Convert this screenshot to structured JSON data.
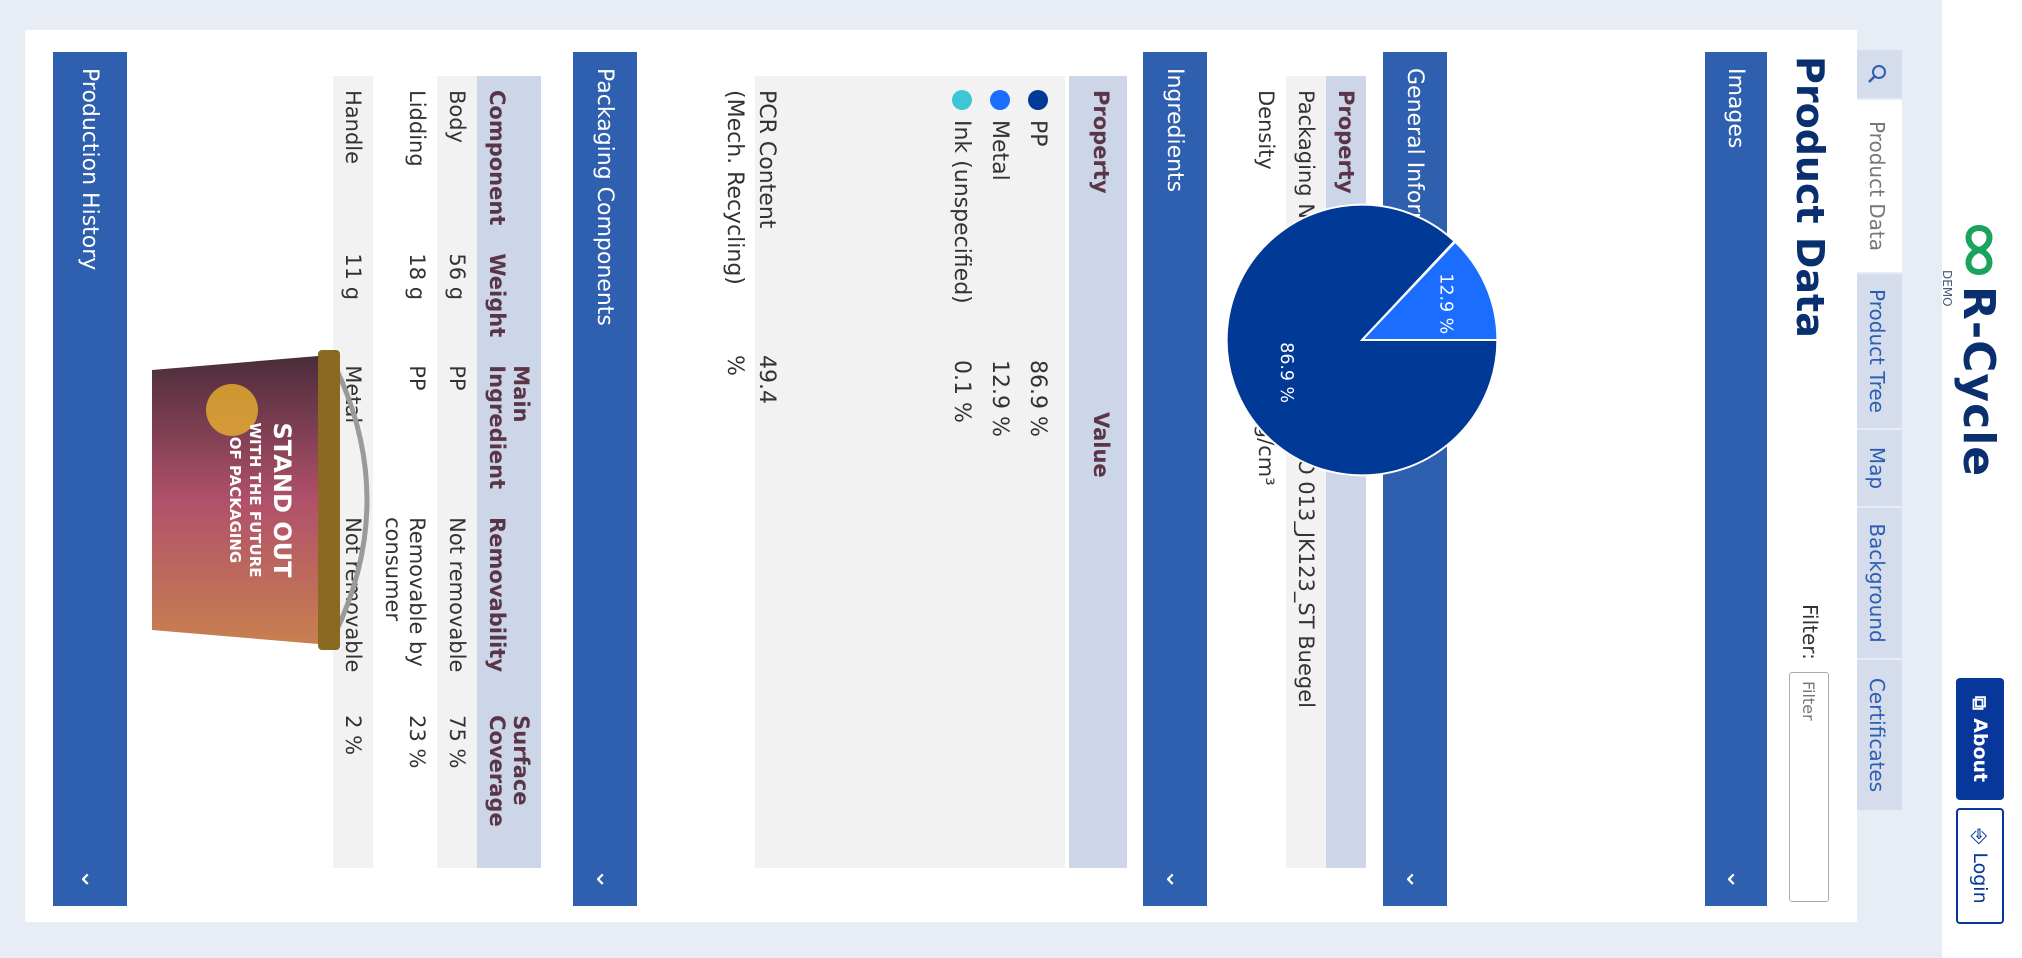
{
  "brand": {
    "name": "R-Cycle",
    "tag": "DEMO"
  },
  "header": {
    "about_label": "About",
    "login_label": "Login"
  },
  "tabs": [
    {
      "label": "Product Data"
    },
    {
      "label": "Product Tree"
    },
    {
      "label": "Map"
    },
    {
      "label": "Background"
    },
    {
      "label": "Certificates"
    }
  ],
  "page": {
    "title": "Product Data",
    "filter_label": "Filter:",
    "filter_placeholder": "Filter"
  },
  "sections": {
    "images": "Images",
    "general": "General Information",
    "ingredients": "Ingredients",
    "packaging": "Packaging Components",
    "history": "Production History"
  },
  "general_info": {
    "headers": [
      "Property",
      "Value"
    ],
    "rows": [
      {
        "property": "Packaging Name",
        "value": "Eimer JETO 013_JK123_ST Buegel"
      },
      {
        "property": "Density",
        "value": "1.811 g/cm³"
      }
    ]
  },
  "ingredients": {
    "headers": [
      "Property",
      "Value"
    ],
    "items": [
      {
        "name": "PP",
        "value": "86.9 %",
        "color": "#003a96"
      },
      {
        "name": "Metal",
        "value": "12.9 %",
        "color": "#1a6dff"
      },
      {
        "name": "Ink (unspecified)",
        "value": "0.1 %",
        "color": "#3ec6d6"
      }
    ],
    "pcr_label_1": "PCR Content",
    "pcr_label_2": "(Mech. Recycling)",
    "pcr_value": "49.4 %"
  },
  "chart_data": {
    "type": "pie",
    "categories": [
      "PP",
      "Metal",
      "Ink (unspecified)"
    ],
    "values": [
      86.9,
      12.9,
      0.1
    ],
    "labels": [
      "86.9 %",
      "12.9 %",
      ""
    ]
  },
  "packaging": {
    "headers": [
      "Component",
      "Weight",
      "Main Ingredient",
      "Removability",
      "Surface Coverage"
    ],
    "rows": [
      {
        "component": "Body",
        "weight": "56 g",
        "ingredient": "PP",
        "removability": "Not removable",
        "coverage": "75 %"
      },
      {
        "component": "Lidding",
        "weight": "18 g",
        "ingredient": "PP",
        "removability": "Removable by consumer",
        "coverage": "23 %"
      },
      {
        "component": "Handle",
        "weight": "11 g",
        "ingredient": "Metal",
        "removability": "Not removable",
        "coverage": "2 %"
      }
    ]
  },
  "product_image": {
    "line1": "STAND OUT",
    "line2": "WITH THE FUTURE",
    "line3": "OF PACKAGING"
  }
}
